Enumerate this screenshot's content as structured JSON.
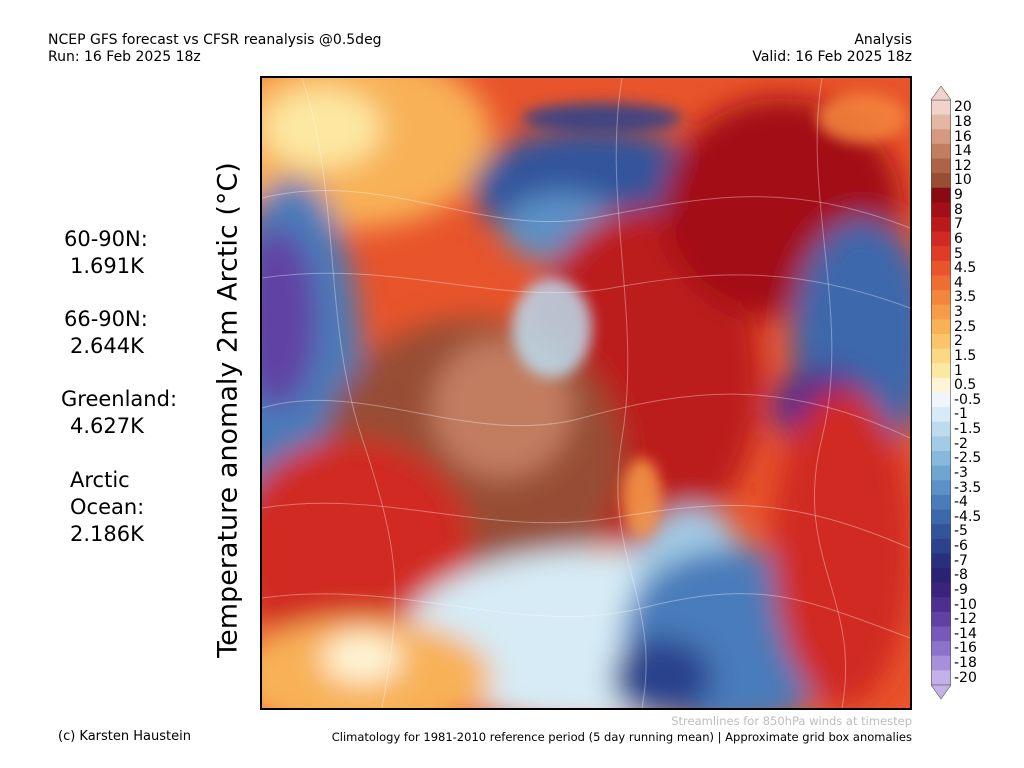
{
  "header": {
    "title": "NCEP GFS forecast vs CFSR reanalysis @0.5deg",
    "run": "Run: 16 Feb 2025 18z",
    "mode": "Analysis",
    "valid": "Valid: 16 Feb 2025 18z"
  },
  "y_axis_label": "Temperature anomaly 2m Arctic (°C)",
  "stats": [
    {
      "label": "60-90N:",
      "value": "1.691K"
    },
    {
      "label": "66-90N:",
      "value": "2.644K"
    },
    {
      "label": "Greenland:",
      "value": "4.627K"
    },
    {
      "label": "Arctic\nOcean:",
      "value": "2.186K"
    }
  ],
  "colorbar": {
    "labels": [
      "20",
      "18",
      "16",
      "14",
      "12",
      "10",
      "9",
      "8",
      "7",
      "6",
      "5",
      "4.5",
      "4",
      "3.5",
      "3",
      "2.5",
      "2",
      "1.5",
      "1",
      "0.5",
      "-0.5",
      "-1",
      "-1.5",
      "-2",
      "-2.5",
      "-3",
      "-3.5",
      "-4",
      "-4.5",
      "-5",
      "-6",
      "-7",
      "-8",
      "-9",
      "-10",
      "-12",
      "-14",
      "-16",
      "-18",
      "-20"
    ],
    "colors": [
      "#f2d3c9",
      "#e4b6a4",
      "#d4997f",
      "#c27d61",
      "#ad6348",
      "#974e35",
      "#8a0a12",
      "#a30f17",
      "#bb1a1c",
      "#d02a22",
      "#df3c26",
      "#e8542b",
      "#ef6d33",
      "#f3853d",
      "#f69b48",
      "#f8b156",
      "#fac56a",
      "#fbd882",
      "#fde8a2",
      "#fef5d6",
      "#eef6fb",
      "#d6ebf5",
      "#bcdcee",
      "#a2cce6",
      "#88b9dc",
      "#6fa5d1",
      "#5b91c6",
      "#4a7cba",
      "#3d68ac",
      "#33549c",
      "#2c428c",
      "#28307e",
      "#2a2272",
      "#3a237c",
      "#4c2f8e",
      "#6142a4",
      "#7659ba",
      "#8d72cc",
      "#a78fdc",
      "#c4b1ea"
    ]
  },
  "footer": {
    "credit": "(c) Karsten Haustein",
    "streamlines": "Streamlines for 850hPa winds at timestep",
    "climatology": "Climatology for 1981-2010 reference period (5 day running mean) | Approximate grid box anomalies"
  }
}
